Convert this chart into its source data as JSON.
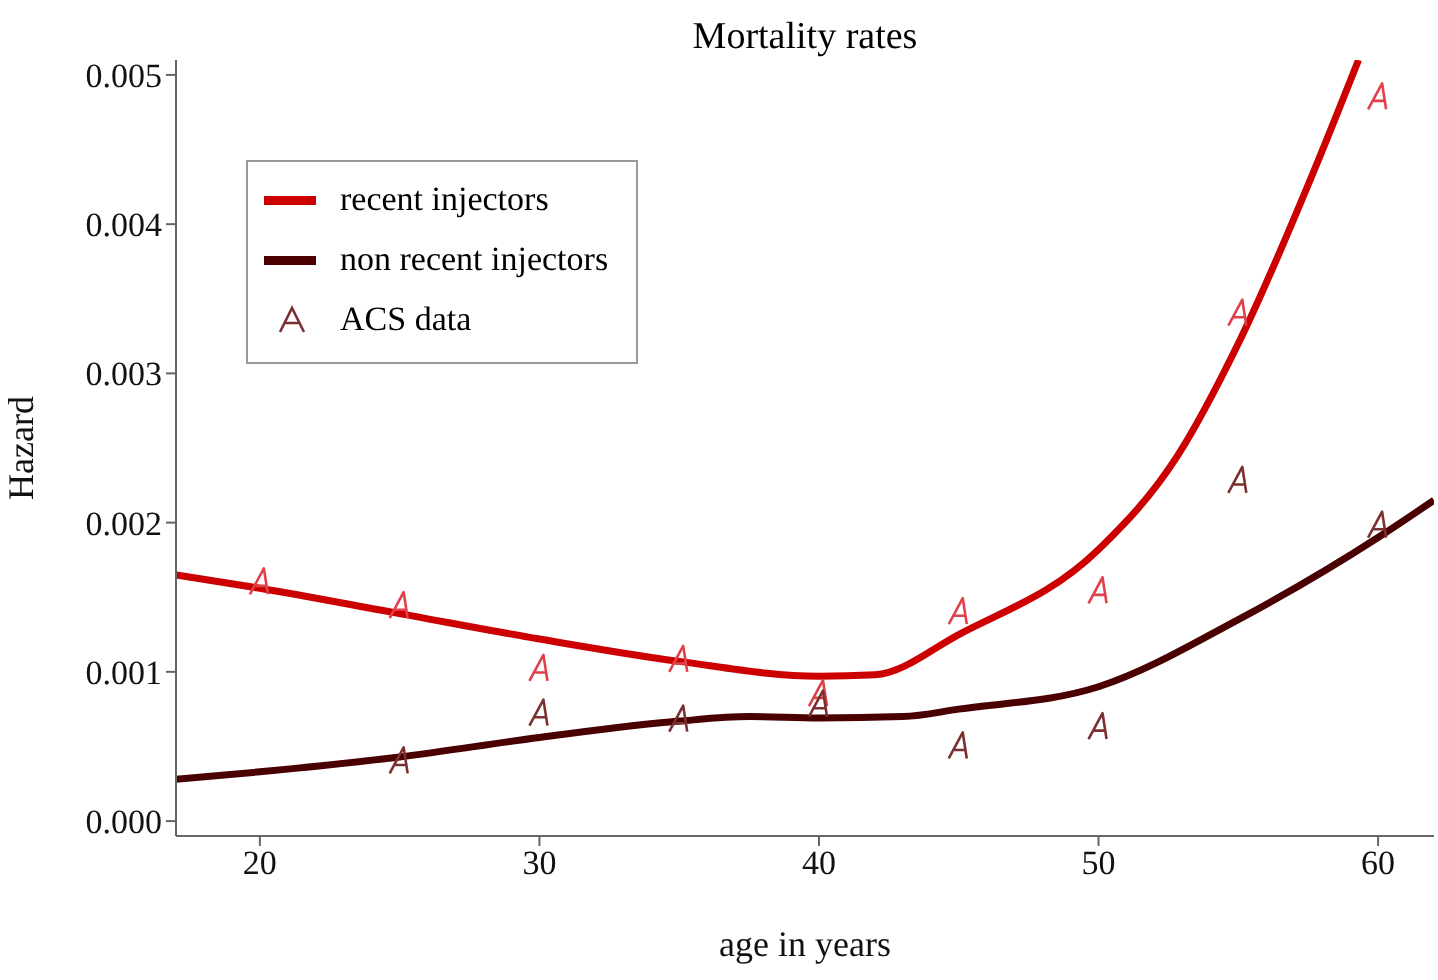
{
  "chart_data": {
    "type": "line",
    "title": "Mortality rates",
    "xlabel": "age in years",
    "ylabel": "Hazard",
    "xlim": [
      17,
      62
    ],
    "xticks": [
      20,
      30,
      40,
      50,
      60
    ],
    "ylim": [
      -0.0001,
      0.0051
    ],
    "yticks": [
      {
        "value": 0,
        "label": "0.000"
      },
      {
        "value": 0.001,
        "label": "0.001"
      },
      {
        "value": 0.002,
        "label": "0.002"
      },
      {
        "value": 0.003,
        "label": "0.003"
      },
      {
        "value": 0.004,
        "label": "0.004"
      },
      {
        "value": 0.005,
        "label": "0.005"
      }
    ],
    "grid": false,
    "legend": "top left",
    "series": [
      {
        "name": "recent injectors",
        "color": "#cc0000",
        "x": [
          17,
          20,
          25,
          30,
          35,
          40,
          42,
          45,
          50,
          52.8,
          55,
          57.8,
          59.3
        ],
        "values": [
          0.00165,
          0.00156,
          0.00139,
          0.00122,
          0.00107,
          0.00097,
          0.00098,
          0.00125,
          0.00182,
          0.00244,
          0.0032,
          0.0044,
          0.0051
        ]
      },
      {
        "name": "non recent injectors",
        "color": "#4a0000",
        "x": [
          17,
          20,
          25,
          30,
          35,
          37.5,
          40,
          43,
          45,
          50,
          55,
          60,
          62
        ],
        "values": [
          0.00028,
          0.00033,
          0.00043,
          0.00056,
          0.00067,
          0.0007,
          0.00069,
          0.0007,
          0.00075,
          0.0009,
          0.00135,
          0.0019,
          0.00215
        ]
      },
      {
        "name": "ACS data",
        "type": "scatter",
        "color": "#7a3030",
        "x": [
          20,
          25,
          30,
          35,
          40,
          45,
          50,
          55,
          60,
          25,
          30,
          35,
          40,
          45,
          50,
          55,
          60
        ],
        "values": [
          0.0016,
          0.00144,
          0.00102,
          0.00108,
          0.00085,
          0.0014,
          0.00154,
          0.0034,
          0.00485,
          0.0004,
          0.00072,
          0.00068,
          0.00078,
          0.0005,
          0.00063,
          0.00228,
          0.00198
        ],
        "colors": [
          "#e0404a",
          "#e0404a",
          "#e0404a",
          "#e0404a",
          "#e0404a",
          "#e0404a",
          "#e0404a",
          "#e0404a",
          "#e0404a",
          "#7a3030",
          "#7a3030",
          "#7a3030",
          "#7a3030",
          "#7a3030",
          "#7a3030",
          "#7a3030",
          "#7a3030"
        ]
      }
    ]
  }
}
